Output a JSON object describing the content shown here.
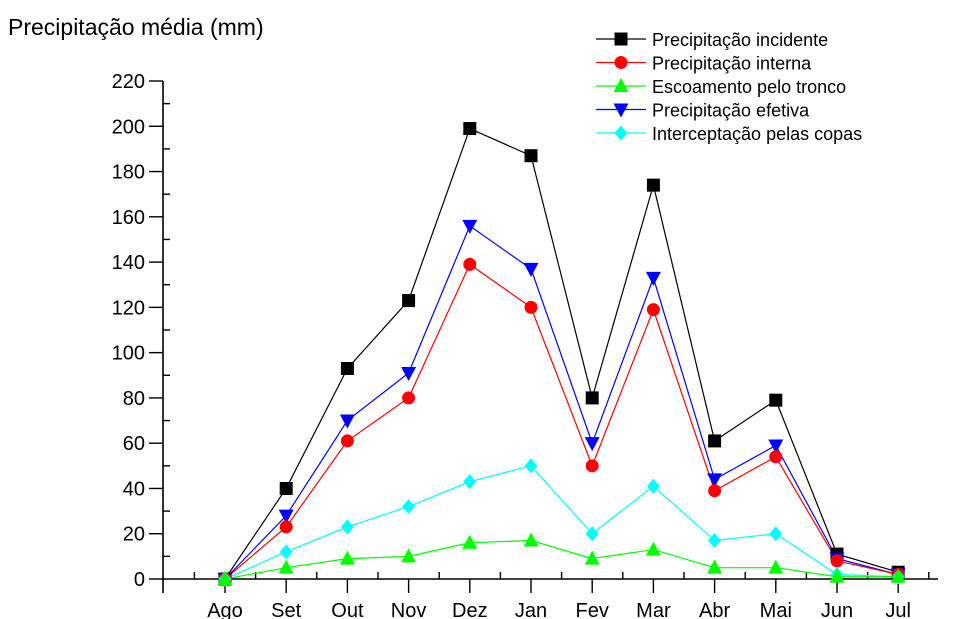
{
  "chart_data": {
    "type": "line",
    "title": "",
    "xlabel": "",
    "ylabel": "Precipitação média (mm)",
    "categories": [
      "Ago",
      "Set",
      "Out",
      "Nov",
      "Dez",
      "Jan",
      "Fev",
      "Mar",
      "Abr",
      "Mai",
      "Jun",
      "Jul"
    ],
    "ylim": [
      0,
      220
    ],
    "yticks": [
      0,
      20,
      40,
      60,
      80,
      100,
      120,
      140,
      160,
      180,
      200,
      220
    ],
    "grid": false,
    "legend_position": "top-right",
    "series": [
      {
        "name": "Precipitação incidente",
        "color": "#000000",
        "marker": "square",
        "values": [
          0,
          40,
          93,
          123,
          199,
          187,
          80,
          174,
          61,
          79,
          11,
          3
        ]
      },
      {
        "name": "Precipitação interna",
        "color": "#ff0000",
        "marker": "circle",
        "values": [
          0,
          23,
          61,
          80,
          139,
          120,
          50,
          119,
          39,
          54,
          8,
          2
        ]
      },
      {
        "name": "Escoamento pelo tronco",
        "color": "#00ff00",
        "marker": "triangle-up",
        "values": [
          0,
          5,
          9,
          10,
          16,
          17,
          9,
          13,
          5,
          5,
          1,
          1
        ]
      },
      {
        "name": "Precipitação efetiva",
        "color": "#0000ff",
        "marker": "triangle-down",
        "values": [
          0,
          28,
          70,
          91,
          156,
          137,
          60,
          133,
          44,
          59,
          9,
          2
        ]
      },
      {
        "name": "Interceptação pelas copas",
        "color": "#00ffff",
        "marker": "diamond",
        "values": [
          0,
          12,
          23,
          32,
          43,
          50,
          20,
          41,
          17,
          20,
          2,
          1
        ]
      }
    ]
  }
}
